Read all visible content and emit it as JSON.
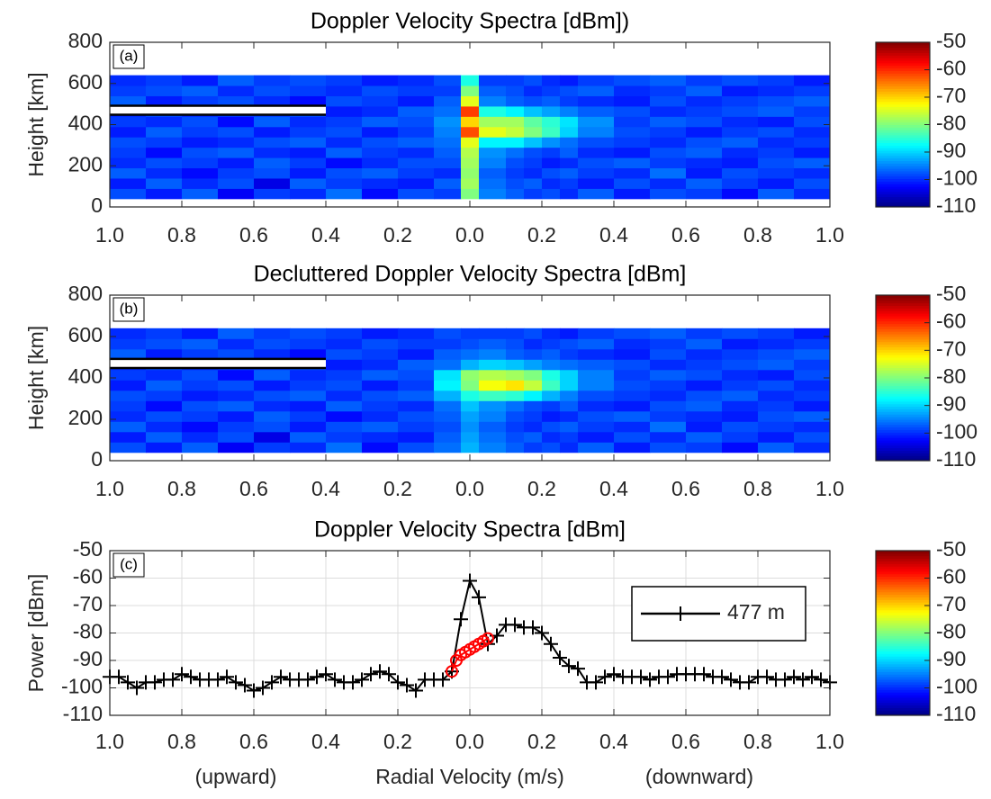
{
  "chart_data": [
    {
      "type": "heatmap",
      "title": "Doppler Velocity Spectra [dBm])",
      "panel_label": "(a)",
      "ylabel": "Height [km]",
      "xlim": [
        -1,
        1
      ],
      "ylim": [
        0,
        800
      ],
      "xticks": [
        {
          "value": -1,
          "label": "1.0"
        },
        {
          "value": -0.8,
          "label": "0.8"
        },
        {
          "value": -0.6,
          "label": "0.6"
        },
        {
          "value": -0.4,
          "label": "0.4"
        },
        {
          "value": -0.2,
          "label": "0.2"
        },
        {
          "value": 0,
          "label": "0.0"
        },
        0.2,
        0.4,
        0.6,
        0.8,
        {
          "value": 1,
          "label": "1.0"
        }
      ],
      "yticks": [
        0,
        200,
        400,
        600,
        800
      ],
      "x_edges": [
        -1,
        -0.9,
        -0.8,
        -0.7,
        -0.6,
        -0.5,
        -0.4,
        -0.3,
        -0.2,
        -0.1,
        -0.025,
        0.025,
        0.1,
        0.15,
        0.2,
        0.25,
        0.3,
        0.4,
        0.5,
        0.6,
        0.7,
        0.8,
        0.9,
        1
      ],
      "y_edges": [
        40,
        90,
        140,
        190,
        240,
        290,
        340,
        390,
        440,
        490,
        540,
        590,
        640
      ],
      "z": [
        [
          -98,
          -101,
          -97,
          -103,
          -99,
          -100,
          -96,
          -102,
          -98,
          -99,
          -80,
          -95,
          -97,
          -99,
          -98,
          -100,
          -97,
          -101,
          -98,
          -99,
          -102,
          -97,
          -100
        ],
        [
          -101,
          -97,
          -100,
          -98,
          -104,
          -97,
          -99,
          -100,
          -101,
          -97,
          -78,
          -96,
          -98,
          -97,
          -100,
          -99,
          -101,
          -98,
          -100,
          -97,
          -99,
          -101,
          -98
        ],
        [
          -97,
          -100,
          -102,
          -99,
          -98,
          -101,
          -98,
          -97,
          -99,
          -100,
          -79,
          -97,
          -99,
          -100,
          -98,
          -97,
          -99,
          -100,
          -96,
          -101,
          -98,
          -99,
          -100
        ],
        [
          -100,
          -98,
          -99,
          -101,
          -97,
          -99,
          -102,
          -100,
          -98,
          -98,
          -78,
          -95,
          -98,
          -99,
          -101,
          -100,
          -98,
          -97,
          -99,
          -100,
          -101,
          -98,
          -97
        ],
        [
          -99,
          -102,
          -98,
          -97,
          -100,
          -101,
          -97,
          -99,
          -100,
          -97,
          -77,
          -94,
          -96,
          -98,
          -99,
          -97,
          -100,
          -101,
          -98,
          -97,
          -100,
          -99,
          -101
        ],
        [
          -98,
          -99,
          -101,
          -100,
          -98,
          -97,
          -100,
          -98,
          -97,
          -96,
          -74,
          -88,
          -88,
          -91,
          -94,
          -96,
          -98,
          -99,
          -100,
          -98,
          -97,
          -100,
          -99
        ],
        [
          -101,
          -97,
          -99,
          -98,
          -101,
          -99,
          -98,
          -101,
          -99,
          -95,
          -62,
          -74,
          -76,
          -80,
          -84,
          -90,
          -95,
          -98,
          -99,
          -101,
          -99,
          -98,
          -100
        ],
        [
          -99,
          -100,
          -98,
          -102,
          -97,
          -100,
          -99,
          -97,
          -98,
          -94,
          -70,
          -78,
          -78,
          -82,
          -85,
          -89,
          -94,
          -99,
          -97,
          -98,
          -100,
          -101,
          -98
        ],
        [
          -100,
          -98,
          -100,
          -99,
          -99,
          -98,
          -101,
          -100,
          -97,
          -96,
          -61,
          -86,
          -88,
          -91,
          -93,
          -95,
          -97,
          -98,
          -100,
          -99,
          -98,
          -97,
          -99
        ],
        [
          -97,
          -101,
          -99,
          -98,
          -100,
          -102,
          -98,
          -99,
          -101,
          -97,
          -74,
          -95,
          -97,
          -98,
          -97,
          -99,
          -100,
          -101,
          -98,
          -100,
          -99,
          -98,
          -97
        ],
        [
          -99,
          -98,
          -97,
          -100,
          -98,
          -99,
          -100,
          -98,
          -99,
          -99,
          -80,
          -97,
          -98,
          -100,
          -99,
          -98,
          -97,
          -100,
          -99,
          -97,
          -101,
          -100,
          -99
        ],
        [
          -100,
          -99,
          -101,
          -97,
          -99,
          -98,
          -99,
          -101,
          -100,
          -98,
          -86,
          -99,
          -99,
          -98,
          -100,
          -101,
          -99,
          -98,
          -97,
          -99,
          -98,
          -99,
          -101
        ]
      ],
      "colorbar": {
        "colormap": "jet",
        "clim": [
          -110,
          -50
        ],
        "ticks": [
          -50,
          -60,
          -70,
          -80,
          -90,
          -100,
          -110
        ]
      }
    },
    {
      "type": "heatmap",
      "title": "Decluttered Doppler Velocity Spectra [dBm]",
      "panel_label": "(b)",
      "ylabel": "Height [km]",
      "xlim": [
        -1,
        1
      ],
      "ylim": [
        0,
        800
      ],
      "xticks": [
        {
          "value": -1,
          "label": "1.0"
        },
        {
          "value": -0.8,
          "label": "0.8"
        },
        {
          "value": -0.6,
          "label": "0.6"
        },
        {
          "value": -0.4,
          "label": "0.4"
        },
        {
          "value": -0.2,
          "label": "0.2"
        },
        {
          "value": 0,
          "label": "0.0"
        },
        0.2,
        0.4,
        0.6,
        0.8,
        {
          "value": 1,
          "label": "1.0"
        }
      ],
      "yticks": [
        0,
        200,
        400,
        600,
        800
      ],
      "x_edges": [
        -1,
        -0.9,
        -0.8,
        -0.7,
        -0.6,
        -0.5,
        -0.4,
        -0.3,
        -0.2,
        -0.1,
        -0.025,
        0.025,
        0.1,
        0.15,
        0.2,
        0.25,
        0.3,
        0.4,
        0.5,
        0.6,
        0.7,
        0.8,
        0.9,
        1
      ],
      "y_edges": [
        40,
        90,
        140,
        190,
        240,
        290,
        340,
        390,
        440,
        490,
        540,
        590,
        640
      ],
      "z": [
        [
          -98,
          -101,
          -97,
          -103,
          -99,
          -100,
          -96,
          -102,
          -98,
          -96,
          -92,
          -95,
          -97,
          -99,
          -98,
          -100,
          -97,
          -101,
          -98,
          -99,
          -102,
          -97,
          -100
        ],
        [
          -101,
          -97,
          -100,
          -98,
          -104,
          -97,
          -99,
          -100,
          -101,
          -97,
          -93,
          -96,
          -98,
          -97,
          -100,
          -99,
          -101,
          -98,
          -100,
          -97,
          -99,
          -101,
          -98
        ],
        [
          -97,
          -100,
          -102,
          -99,
          -98,
          -101,
          -98,
          -97,
          -99,
          -98,
          -94,
          -97,
          -99,
          -100,
          -98,
          -97,
          -99,
          -100,
          -96,
          -101,
          -98,
          -99,
          -100
        ],
        [
          -100,
          -98,
          -99,
          -101,
          -97,
          -99,
          -102,
          -100,
          -98,
          -97,
          -93,
          -95,
          -98,
          -99,
          -101,
          -100,
          -98,
          -97,
          -99,
          -100,
          -101,
          -98,
          -97
        ],
        [
          -99,
          -102,
          -98,
          -97,
          -100,
          -101,
          -97,
          -99,
          -100,
          -96,
          -91,
          -94,
          -96,
          -98,
          -99,
          -97,
          -100,
          -101,
          -98,
          -97,
          -100,
          -99,
          -101
        ],
        [
          -98,
          -99,
          -101,
          -100,
          -98,
          -97,
          -100,
          -98,
          -97,
          -92,
          -86,
          -84,
          -85,
          -88,
          -92,
          -95,
          -98,
          -99,
          -100,
          -98,
          -97,
          -100,
          -99
        ],
        [
          -101,
          -97,
          -99,
          -98,
          -101,
          -99,
          -98,
          -101,
          -99,
          -88,
          -80,
          -73,
          -71,
          -76,
          -84,
          -90,
          -95,
          -98,
          -99,
          -101,
          -99,
          -98,
          -100
        ],
        [
          -99,
          -100,
          -98,
          -102,
          -97,
          -100,
          -99,
          -97,
          -98,
          -89,
          -79,
          -77,
          -78,
          -80,
          -86,
          -90,
          -95,
          -99,
          -97,
          -98,
          -100,
          -101,
          -98
        ],
        [
          -100,
          -98,
          -100,
          -99,
          -99,
          -98,
          -101,
          -100,
          -97,
          -96,
          -92,
          -90,
          -91,
          -93,
          -95,
          -96,
          -97,
          -98,
          -100,
          -99,
          -98,
          -97,
          -99
        ],
        [
          -97,
          -101,
          -99,
          -98,
          -100,
          -102,
          -98,
          -99,
          -101,
          -97,
          -96,
          -95,
          -97,
          -98,
          -97,
          -99,
          -100,
          -101,
          -98,
          -100,
          -99,
          -98,
          -97
        ],
        [
          -99,
          -98,
          -97,
          -100,
          -98,
          -99,
          -100,
          -98,
          -99,
          -99,
          -98,
          -97,
          -98,
          -100,
          -99,
          -98,
          -97,
          -100,
          -99,
          -97,
          -101,
          -100,
          -99
        ],
        [
          -100,
          -99,
          -101,
          -97,
          -99,
          -98,
          -99,
          -101,
          -100,
          -98,
          -99,
          -99,
          -99,
          -98,
          -100,
          -101,
          -99,
          -98,
          -97,
          -99,
          -98,
          -99,
          -101
        ]
      ],
      "colorbar": {
        "colormap": "jet",
        "clim": [
          -110,
          -50
        ],
        "ticks": [
          -50,
          -60,
          -70,
          -80,
          -90,
          -100,
          -110
        ]
      }
    },
    {
      "type": "line",
      "title": "Doppler Velocity Spectra [dBm]",
      "panel_label": "(c)",
      "ylabel": "Power [dBm]",
      "xlabel": "Radial Velocity (m/s)",
      "xlabel_left": "(upward)",
      "xlabel_right": "(downward)",
      "xlim": [
        -1,
        1
      ],
      "ylim": [
        -110,
        -50
      ],
      "grid": true,
      "legend": "northeast",
      "xticks": [
        {
          "value": -1,
          "label": "1.0"
        },
        {
          "value": -0.8,
          "label": "0.8"
        },
        {
          "value": -0.6,
          "label": "0.6"
        },
        {
          "value": -0.4,
          "label": "0.4"
        },
        {
          "value": -0.2,
          "label": "0.2"
        },
        {
          "value": 0,
          "label": "0.0"
        },
        0.2,
        0.4,
        0.6,
        0.8,
        {
          "value": 1,
          "label": "1.0"
        }
      ],
      "yticks": [
        -50,
        -60,
        -70,
        -80,
        -90,
        -100,
        -110
      ],
      "series": [
        {
          "name": "477 m",
          "color": "#000000",
          "marker": "plus",
          "x": [
            -1,
            -0.975,
            -0.95,
            -0.925,
            -0.9,
            -0.875,
            -0.85,
            -0.825,
            -0.8,
            -0.775,
            -0.75,
            -0.725,
            -0.7,
            -0.675,
            -0.65,
            -0.625,
            -0.6,
            -0.575,
            -0.55,
            -0.525,
            -0.5,
            -0.475,
            -0.45,
            -0.425,
            -0.4,
            -0.375,
            -0.35,
            -0.325,
            -0.3,
            -0.275,
            -0.25,
            -0.225,
            -0.2,
            -0.175,
            -0.15,
            -0.125,
            -0.1,
            -0.075,
            -0.05,
            -0.025,
            0,
            0.025,
            0.05,
            0.075,
            0.1,
            0.125,
            0.15,
            0.175,
            0.2,
            0.225,
            0.25,
            0.275,
            0.3,
            0.325,
            0.35,
            0.375,
            0.4,
            0.425,
            0.45,
            0.475,
            0.5,
            0.525,
            0.55,
            0.575,
            0.6,
            0.625,
            0.65,
            0.675,
            0.7,
            0.725,
            0.75,
            0.775,
            0.8,
            0.825,
            0.85,
            0.875,
            0.9,
            0.925,
            0.95,
            0.975,
            1
          ],
          "values": [
            -96,
            -96,
            -98,
            -100,
            -98,
            -98,
            -97,
            -97,
            -95,
            -96,
            -97,
            -97,
            -97,
            -96,
            -98,
            -99,
            -101,
            -100,
            -98,
            -96,
            -97,
            -97,
            -97,
            -96,
            -95,
            -97,
            -98,
            -98,
            -97,
            -95,
            -94,
            -95,
            -98,
            -99,
            -101,
            -97,
            -97,
            -97,
            -94,
            -75,
            -61,
            -67,
            -84,
            -81,
            -77,
            -77,
            -78,
            -78,
            -80,
            -84,
            -89,
            -92,
            -93,
            -98,
            -98,
            -96,
            -95,
            -96,
            -96,
            -96,
            -97,
            -96,
            -96,
            -95,
            -95,
            -95,
            -95,
            -96,
            -96,
            -97,
            -98,
            -98,
            -96,
            -96,
            -97,
            -97,
            -96,
            -97,
            -96,
            -97,
            -98
          ]
        },
        {
          "color": "#ff0000",
          "marker": "circle",
          "x": [
            -0.05,
            -0.0375,
            -0.025,
            -0.0125,
            0,
            0.0125,
            0.025,
            0.0375,
            0.05
          ],
          "values": [
            -94,
            -90,
            -88,
            -87,
            -86,
            -85,
            -84,
            -83,
            -82
          ]
        }
      ],
      "colorbar": {
        "colormap": "jet",
        "clim": [
          -110,
          -50
        ],
        "ticks": [
          -50,
          -60,
          -70,
          -80,
          -90,
          -100,
          -110
        ]
      }
    }
  ]
}
